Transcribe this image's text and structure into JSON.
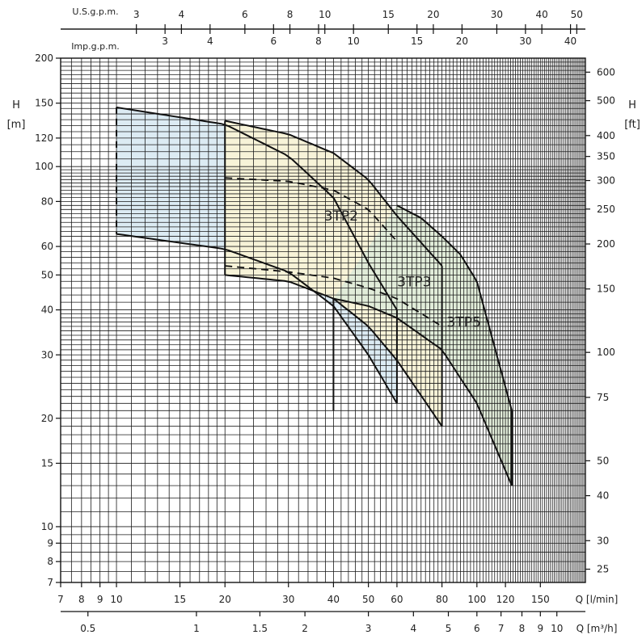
{
  "chart_data": {
    "type": "line",
    "title": "",
    "x_axis_bottom_1": {
      "unit_label": "Q [l/min]",
      "scale": "log",
      "range": [
        7,
        200
      ],
      "tick_labels": [
        7,
        8,
        9,
        10,
        15,
        20,
        30,
        40,
        50,
        60,
        80,
        100,
        120,
        150
      ]
    },
    "x_axis_bottom_2": {
      "unit_label": "Q [m³/h]",
      "tick_labels": [
        "0.5",
        "1",
        "1.5",
        "2",
        "3",
        "4",
        "5",
        "6",
        "7",
        "8",
        "9",
        "10"
      ]
    },
    "x_axis_top_1": {
      "unit_label": "U.S.g.p.m.",
      "tick_labels": [
        "3",
        "4",
        "6",
        "8",
        "10",
        "15",
        "20",
        "30",
        "40",
        "50"
      ]
    },
    "x_axis_top_2": {
      "unit_label": "Imp.g.p.m.",
      "tick_labels": [
        "3",
        "4",
        "6",
        "8",
        "10",
        "15",
        "20",
        "30",
        "40"
      ]
    },
    "y_axis_left": {
      "title": "H",
      "unit": "[m]",
      "scale": "log",
      "range": [
        7,
        200
      ],
      "tick_labels": [
        7,
        8,
        9,
        10,
        15,
        20,
        30,
        40,
        50,
        60,
        80,
        100,
        120,
        150,
        200
      ]
    },
    "y_axis_right": {
      "title": "H",
      "unit": "[ft]",
      "tick_labels": [
        25,
        30,
        40,
        50,
        75,
        100,
        150,
        200,
        250,
        300,
        350,
        400,
        500,
        600
      ]
    },
    "grid": true,
    "ranges": [
      {
        "name": "3TP2",
        "color": "#dcebf3",
        "upper_curve": {
          "x": [
            10,
            20,
            30,
            40,
            50,
            60
          ],
          "y": [
            146,
            131,
            107,
            82,
            54,
            40
          ]
        },
        "lower_curve": {
          "x": [
            10,
            20,
            30,
            40,
            50,
            60
          ],
          "y": [
            65,
            59,
            51,
            41,
            30,
            22
          ]
        },
        "q_limits": [
          10,
          60
        ],
        "mid_curve_dashed": {
          "x": [
            20,
            30,
            40,
            50,
            60
          ],
          "y": [
            93,
            91,
            86,
            76,
            62
          ]
        },
        "label_at": {
          "x": 42,
          "y": 73
        }
      },
      {
        "name": "3TP3",
        "color": "#f7f3d8",
        "upper_curve": {
          "x": [
            20,
            30,
            40,
            50,
            60,
            80
          ],
          "y": [
            134,
            123,
            109,
            92,
            73,
            53
          ]
        },
        "lower_curve": {
          "x": [
            20,
            30,
            40,
            50,
            60,
            80
          ],
          "y": [
            50,
            48,
            43,
            36,
            29,
            19
          ]
        },
        "q_limits": [
          20,
          80
        ],
        "mid_curve_dashed": {
          "x": [
            20,
            30,
            40,
            50,
            60,
            80
          ],
          "y": [
            53,
            51,
            49,
            46,
            43,
            36
          ]
        },
        "label_at": {
          "x": 67,
          "y": 48
        }
      },
      {
        "name": "3TP5",
        "color": "#e1ecd9",
        "upper_curve": {
          "x": [
            60,
            70,
            80,
            90,
            100,
            125
          ],
          "y": [
            78,
            72,
            64,
            57,
            48,
            21
          ]
        },
        "lower_curve": {
          "x": [
            40,
            50,
            60,
            80,
            100,
            125
          ],
          "y": [
            43,
            41,
            38,
            31,
            22,
            13
          ]
        },
        "q_limits": [
          40,
          125
        ],
        "label_at": {
          "x": 92,
          "y": 37
        }
      }
    ]
  }
}
